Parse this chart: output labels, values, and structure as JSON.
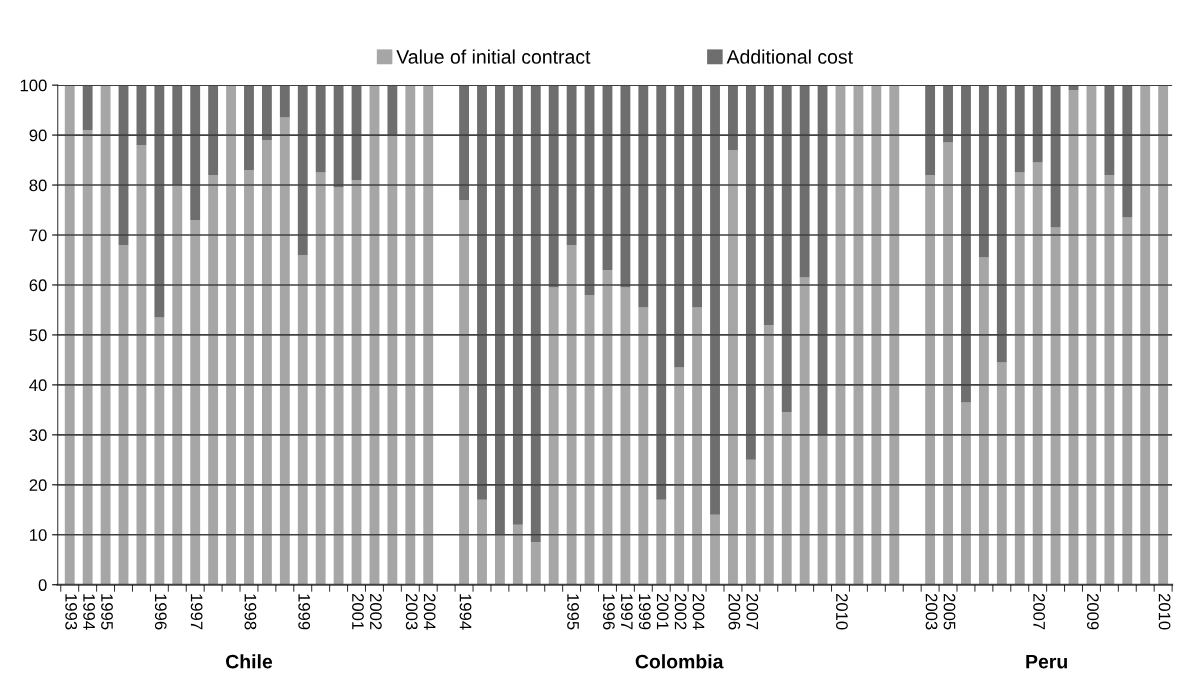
{
  "chart_data": {
    "type": "bar",
    "stacked": true,
    "categories": [
      "1993",
      "1994",
      "1995",
      null,
      null,
      "1996",
      null,
      "1997",
      null,
      null,
      "1998",
      null,
      null,
      "1999",
      null,
      null,
      "2001",
      "2002",
      null,
      "2003",
      "2004",
      null,
      "1994",
      null,
      null,
      null,
      null,
      null,
      "1995",
      null,
      "1996",
      "1997",
      "1999",
      "2001",
      "2002",
      "2004",
      null,
      "2006",
      "2007",
      null,
      null,
      null,
      null,
      "2010",
      null,
      null,
      null,
      null,
      "2003",
      "2005",
      null,
      null,
      null,
      null,
      "2007",
      null,
      null,
      "2009",
      null,
      null,
      null,
      "2010"
    ],
    "series": [
      {
        "name": "Value of initial contract",
        "color": "#a6a6a6",
        "values": [
          100,
          91,
          100,
          68,
          88,
          53.5,
          80,
          73,
          82,
          100,
          83,
          89,
          93.5,
          66,
          82.5,
          79.5,
          81,
          100,
          90,
          100,
          100,
          null,
          77,
          17,
          10,
          12,
          8.5,
          59.5,
          68,
          58,
          63,
          59.5,
          55.5,
          17,
          43.5,
          55.5,
          14,
          87,
          25,
          52,
          34.5,
          61.5,
          30,
          100,
          100,
          100,
          100,
          null,
          82,
          88.5,
          36.5,
          65.5,
          44.5,
          82.5,
          84.5,
          71.5,
          99,
          100,
          82,
          73.5,
          100,
          100
        ]
      },
      {
        "name": "Additional cost",
        "color": "#6e6e6e",
        "values": [
          0,
          9,
          0,
          32,
          12,
          46.5,
          20,
          27,
          18,
          0,
          17,
          11,
          6.5,
          34,
          17.5,
          20.5,
          19,
          0,
          10,
          0,
          0,
          null,
          23,
          83,
          90,
          88,
          91.5,
          40.5,
          32,
          42,
          37,
          40.5,
          44.5,
          83,
          56.5,
          44.5,
          86,
          13,
          75,
          48,
          65.5,
          38.5,
          70,
          0,
          0,
          0,
          0,
          null,
          18,
          11.5,
          63.5,
          34.5,
          55.5,
          17.5,
          15.5,
          28.5,
          1,
          0,
          18,
          26.5,
          0,
          0
        ]
      }
    ],
    "ylim": [
      0,
      100
    ],
    "yticks": [
      0,
      10,
      20,
      30,
      40,
      50,
      60,
      70,
      80,
      90,
      100
    ],
    "grid": "y",
    "legend": "top",
    "annotations": [
      "Chile",
      "Colombia",
      "Peru"
    ]
  }
}
